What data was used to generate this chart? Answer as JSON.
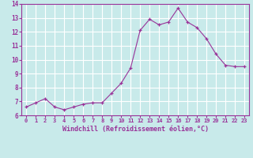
{
  "x": [
    0,
    1,
    2,
    3,
    4,
    5,
    6,
    7,
    8,
    9,
    10,
    11,
    12,
    13,
    14,
    15,
    16,
    17,
    18,
    19,
    20,
    21,
    22,
    23
  ],
  "y": [
    6.6,
    6.9,
    7.2,
    6.6,
    6.4,
    6.6,
    6.8,
    6.9,
    6.9,
    7.6,
    8.3,
    9.4,
    12.1,
    12.9,
    12.5,
    12.7,
    13.7,
    12.7,
    12.3,
    11.5,
    10.4,
    9.6,
    9.5,
    9.5
  ],
  "line_color": "#993399",
  "marker": "+",
  "bg_color": "#c8eaea",
  "grid_color": "#ffffff",
  "xlabel": "Windchill (Refroidissement éolien,°C)",
  "xlabel_color": "#993399",
  "tick_color": "#993399",
  "ylim": [
    6,
    14
  ],
  "xlim": [
    -0.5,
    23.5
  ],
  "yticks": [
    6,
    7,
    8,
    9,
    10,
    11,
    12,
    13,
    14
  ],
  "xticks": [
    0,
    1,
    2,
    3,
    4,
    5,
    6,
    7,
    8,
    9,
    10,
    11,
    12,
    13,
    14,
    15,
    16,
    17,
    18,
    19,
    20,
    21,
    22,
    23
  ],
  "font_family": "monospace",
  "figw": 3.2,
  "figh": 2.0,
  "dpi": 100
}
